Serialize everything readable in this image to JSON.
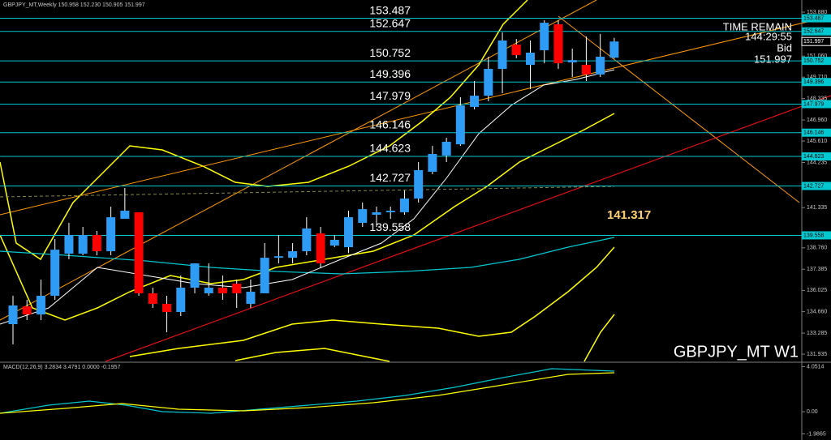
{
  "chart_data": {
    "type": "candlestick",
    "header": "GBPJPY_MT,Weekly  150.958 152.230 150.905 151.997",
    "symbol_label": "GBPJPY_MT W1",
    "time_remain_label": "TIME REMAIN",
    "time_remain": "144:29:55",
    "bid_label": "Bid",
    "bid": 151.997,
    "annotation": 141.317,
    "up_color": "#2e9cf5",
    "down_color": "#ff0000",
    "level_color": "#00c8d0",
    "open": [
      133.86,
      135.0,
      134.48,
      135.68,
      138.38,
      138.38,
      139.58,
      138.54,
      140.62,
      141.04,
      135.84,
      135.16,
      134.64,
      136.2,
      135.84,
      136.2,
      136.46,
      135.16,
      135.84,
      138.12,
      138.12,
      138.54,
      139.68,
      138.9,
      138.8,
      140.36,
      140.88,
      141.04,
      141.04,
      141.92,
      143.64,
      144.68,
      145.4,
      147.8,
      148.52,
      150.24,
      151.8,
      150.5,
      151.44,
      153.1,
      150.66,
      150.5,
      149.88,
      150.958
    ],
    "high": [
      135.68,
      135.42,
      136.72,
      139.32,
      140.36,
      140.1,
      139.84,
      141.4,
      142.6,
      141.04,
      136.2,
      135.68,
      136.98,
      137.76,
      137.76,
      136.98,
      136.72,
      136.72,
      139.06,
      139.58,
      139.06,
      140.72,
      140.1,
      139.58,
      141.14,
      141.66,
      141.4,
      141.4,
      142.44,
      144.26,
      145.3,
      145.82,
      148.42,
      149.46,
      151.02,
      152.58,
      152.16,
      152.06,
      153.36,
      153.36,
      151.54,
      152.32,
      152.48,
      152.23
    ],
    "low": [
      132.56,
      134.12,
      134.12,
      135.42,
      138.02,
      138.28,
      138.28,
      138.28,
      140.62,
      135.68,
      134.9,
      133.34,
      134.38,
      135.84,
      135.68,
      135.42,
      134.9,
      134.9,
      135.84,
      137.76,
      137.76,
      138.28,
      137.5,
      138.8,
      138.42,
      140.1,
      140.1,
      140.62,
      140.88,
      141.66,
      143.48,
      144.26,
      145.3,
      147.64,
      148.16,
      148.68,
      150.92,
      148.94,
      150.6,
      150.24,
      149.72,
      149.46,
      149.72,
      150.905
    ],
    "close": [
      135.06,
      134.48,
      135.68,
      138.64,
      139.58,
      139.58,
      138.54,
      140.72,
      141.14,
      135.84,
      135.16,
      134.64,
      136.2,
      137.76,
      136.2,
      135.84,
      135.84,
      135.94,
      138.12,
      138.22,
      138.54,
      140.0,
      137.76,
      139.27,
      140.72,
      141.24,
      141.04,
      141.14,
      141.92,
      143.74,
      144.78,
      145.56,
      147.9,
      148.52,
      150.24,
      152.06,
      151.12,
      151.28,
      153.2,
      150.6,
      150.8,
      149.88,
      151.02,
      151.997
    ],
    "levels": [
      153.487,
      152.647,
      150.752,
      149.396,
      147.979,
      146.146,
      144.623,
      142.727,
      139.558
    ],
    "ylim": [
      131.47,
      154.66
    ],
    "yticks": [
      {
        "value": 153.88,
        "label": "153.880"
      },
      {
        "value": 151.06,
        "label": "151.060"
      },
      {
        "value": 149.71,
        "label": "149.710"
      },
      {
        "value": 148.335,
        "label": "148.335"
      },
      {
        "value": 146.96,
        "label": "146.960"
      },
      {
        "value": 145.61,
        "label": "145.610"
      },
      {
        "value": 144.235,
        "label": "144.235"
      },
      {
        "value": 141.335,
        "label": "141.335"
      },
      {
        "value": 138.76,
        "label": "138.760"
      },
      {
        "value": 137.385,
        "label": "137.385"
      },
      {
        "value": 136.025,
        "label": "136.025"
      },
      {
        "value": 134.66,
        "label": "134.660"
      },
      {
        "value": 133.285,
        "label": "133.285"
      },
      {
        "value": 131.935,
        "label": "131.935"
      }
    ],
    "macd_label": "MACD(12,26,9) 3.2834 3.4791 0.0000 -0.1957",
    "macd_ylim": [
      -2.1,
      4.3
    ],
    "macd_yticks": [
      4.0514,
      {
        "value": 0,
        "label": "0.00"
      },
      -1.9865
    ]
  }
}
